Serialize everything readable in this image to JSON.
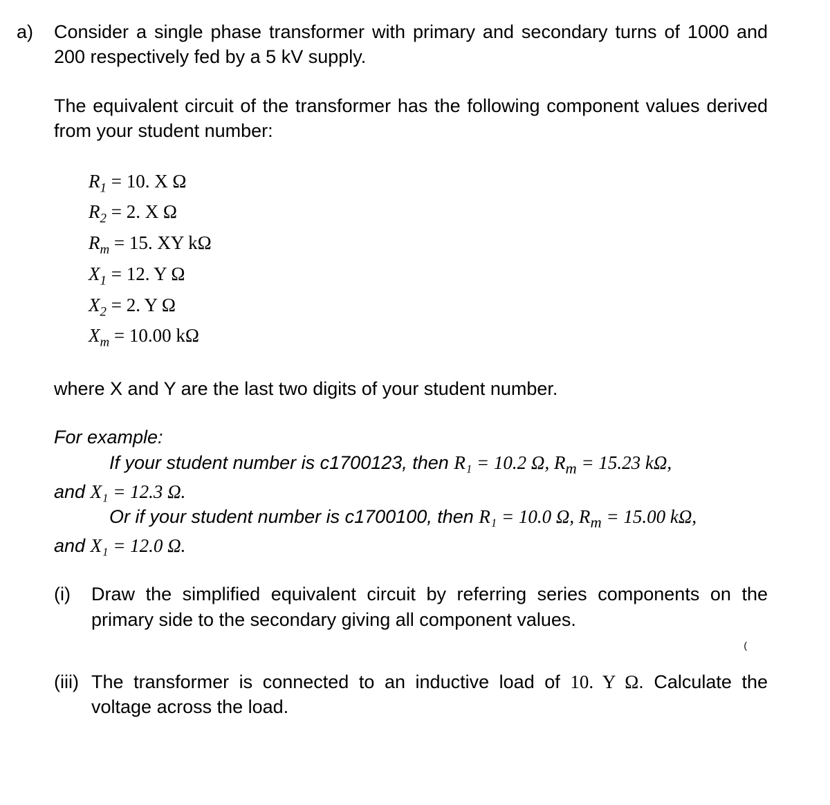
{
  "question": {
    "label": "a)",
    "intro_para": "Consider a single phase transformer with primary and secondary turns of 1000 and 200 respectively fed by a 5 kV supply.",
    "second_para": "The equivalent circuit of the transformer has the following component values derived from your student number:",
    "equations": {
      "r1": {
        "symbol": "R",
        "sub": "1",
        "rhs": "10. X Ω"
      },
      "r2": {
        "symbol": "R",
        "sub": "2",
        "rhs": "2. X Ω"
      },
      "rm": {
        "symbol": "R",
        "sub": "m",
        "rhs": "15. XY kΩ"
      },
      "x1": {
        "symbol": "X",
        "sub": "1",
        "rhs": "12. Y Ω"
      },
      "x2": {
        "symbol": "X",
        "sub": "2",
        "rhs": "2. Y Ω"
      },
      "xm": {
        "symbol": "X",
        "sub": "m",
        "rhs": "10.00 kΩ"
      }
    },
    "where_line": "where X and Y are the last two digits of your student number.",
    "example": {
      "header": "For example:",
      "line1_a": "If your student number is c1700123, then ",
      "line1_math1": "R₁ = 10.2 Ω, R",
      "line1_math1_sub": "m",
      "line1_math1_tail": " = 15.23 kΩ,",
      "line1_b": "and ",
      "line1_math2": "X₁ = 12.3 Ω.",
      "line2_a": "Or if your student number is c1700100, then ",
      "line2_math1": "R₁ = 10.0 Ω, R",
      "line2_math1_sub": "m",
      "line2_math1_tail": " = 15.00 kΩ,",
      "line2_b": "and ",
      "line2_math2": "X₁ = 12.0 Ω."
    },
    "subparts": {
      "i": {
        "label": "(i)",
        "text": "Draw the simplified equivalent circuit by referring series components on the primary side to the secondary giving all component values."
      },
      "iii": {
        "label": "(iii)",
        "text_a": "The transformer is connected to an inductive load of ",
        "text_math": "10. Y Ω",
        "text_b": ". Calculate the voltage across the load."
      }
    },
    "small_mark": "("
  },
  "style": {
    "font_body": "Arial",
    "font_math": "Cambria Math",
    "fontsize_pt": 20,
    "color_text": "#000000",
    "background": "#ffffff"
  }
}
